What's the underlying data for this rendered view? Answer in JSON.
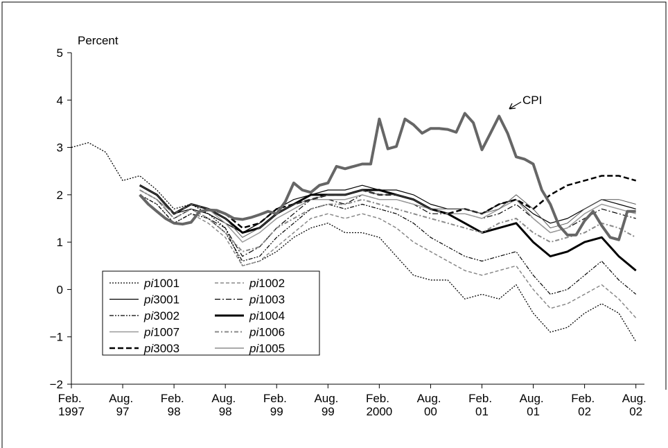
{
  "chart_data": {
    "type": "line",
    "y_label": "Percent",
    "annotation": "CPI",
    "xlim": [
      "1997-02",
      "2002-09"
    ],
    "ylim": [
      -2,
      5
    ],
    "yticks": [
      {
        "value": -2,
        "label": "−2"
      },
      {
        "value": -1,
        "label": "−1"
      },
      0,
      1,
      2,
      3,
      4,
      5
    ],
    "xticks": [
      {
        "value": "1997-02",
        "label": "Feb. 1997"
      },
      {
        "value": "1997-08",
        "label": "Aug. 97"
      },
      {
        "value": "1998-02",
        "label": "Feb. 98"
      },
      {
        "value": "1998-08",
        "label": "Aug. 98"
      },
      {
        "value": "1999-02",
        "label": "Feb. 99"
      },
      {
        "value": "1999-08",
        "label": "Aug. 99"
      },
      {
        "value": "2000-02",
        "label": "Feb. 2000"
      },
      {
        "value": "2000-08",
        "label": "Aug. 00"
      },
      {
        "value": "2001-02",
        "label": "Feb. 01"
      },
      {
        "value": "2001-08",
        "label": "Aug. 01"
      },
      {
        "value": "2002-02",
        "label": "Feb. 02"
      },
      {
        "value": "2002-08",
        "label": "Aug. 02"
      }
    ],
    "x": [
      "1997-02",
      "1997-04",
      "1997-06",
      "1997-08",
      "1997-10",
      "1997-12",
      "1998-02",
      "1998-04",
      "1998-06",
      "1998-08",
      "1998-10",
      "1998-12",
      "1999-02",
      "1999-04",
      "1999-06",
      "1999-08",
      "1999-10",
      "1999-12",
      "2000-02",
      "2000-04",
      "2000-06",
      "2000-08",
      "2000-10",
      "2000-12",
      "2001-02",
      "2001-04",
      "2001-06",
      "2001-08",
      "2001-10",
      "2001-12",
      "2002-02",
      "2002-04",
      "2002-06",
      "2002-08"
    ],
    "series": [
      {
        "name": "pi1001",
        "color": "#000000",
        "width": 1.3,
        "dash": "2,2",
        "values": [
          3.0,
          3.1,
          2.9,
          2.3,
          2.4,
          2.1,
          1.7,
          1.8,
          1.6,
          1.3,
          0.5,
          0.6,
          0.8,
          1.1,
          1.3,
          1.4,
          1.2,
          1.2,
          1.1,
          0.7,
          0.3,
          0.2,
          0.2,
          -0.2,
          -0.1,
          -0.2,
          0.1,
          -0.5,
          -0.9,
          -0.8,
          -0.5,
          -0.3,
          -0.5,
          -1.1
        ]
      },
      {
        "name": "pi1002",
        "color": "#888888",
        "width": 1.5,
        "dash": "5,3",
        "values": [
          null,
          null,
          null,
          null,
          2.0,
          1.8,
          1.4,
          1.6,
          1.4,
          1.1,
          0.5,
          0.6,
          0.9,
          1.2,
          1.5,
          1.6,
          1.5,
          1.6,
          1.5,
          1.3,
          1.0,
          0.8,
          0.6,
          0.4,
          0.3,
          0.4,
          0.5,
          0.0,
          -0.4,
          -0.3,
          -0.1,
          0.1,
          -0.2,
          -0.6
        ]
      },
      {
        "name": "pi3001",
        "color": "#000000",
        "width": 1.2,
        "dash": "none",
        "values": [
          null,
          null,
          null,
          null,
          2.2,
          2.0,
          1.6,
          1.7,
          1.6,
          1.4,
          1.2,
          1.4,
          1.7,
          1.9,
          2.0,
          2.1,
          2.1,
          2.2,
          2.1,
          2.1,
          2.0,
          1.8,
          1.7,
          1.7,
          1.6,
          1.8,
          1.9,
          1.6,
          1.4,
          1.5,
          1.7,
          1.9,
          1.8,
          1.7
        ]
      },
      {
        "name": "pi1003",
        "color": "#000000",
        "width": 1.2,
        "dash": "8,3,2,3",
        "values": [
          null,
          null,
          null,
          null,
          2.1,
          1.9,
          1.5,
          1.7,
          1.5,
          1.3,
          0.7,
          0.9,
          1.3,
          1.6,
          1.9,
          1.9,
          1.8,
          2.0,
          1.9,
          1.9,
          1.8,
          1.6,
          1.6,
          1.6,
          1.5,
          1.6,
          1.8,
          1.5,
          1.2,
          1.3,
          1.5,
          1.7,
          1.6,
          1.5
        ]
      },
      {
        "name": "pi3002",
        "color": "#000000",
        "width": 1.2,
        "dash": "6,2,2,2,2,2",
        "values": [
          null,
          null,
          null,
          null,
          2.0,
          1.8,
          1.4,
          1.6,
          1.5,
          1.2,
          0.6,
          0.7,
          1.1,
          1.4,
          1.7,
          1.8,
          1.7,
          1.8,
          1.7,
          1.6,
          1.4,
          1.1,
          0.9,
          0.7,
          0.6,
          0.7,
          0.8,
          0.3,
          -0.1,
          0.0,
          0.3,
          0.6,
          0.2,
          -0.1
        ]
      },
      {
        "name": "pi1004",
        "color": "#000000",
        "width": 3,
        "dash": "none",
        "values": [
          null,
          null,
          null,
          null,
          2.2,
          2.0,
          1.6,
          1.8,
          1.7,
          1.5,
          1.2,
          1.3,
          1.6,
          1.8,
          2.0,
          2.0,
          2.0,
          2.1,
          2.1,
          2.0,
          1.9,
          1.7,
          1.6,
          1.4,
          1.2,
          1.3,
          1.4,
          1.0,
          0.7,
          0.8,
          1.0,
          1.1,
          0.7,
          0.4
        ]
      },
      {
        "name": "pi1007",
        "color": "#999999",
        "width": 1.5,
        "dash": "none",
        "values": [
          null,
          null,
          null,
          null,
          2.1,
          1.9,
          1.6,
          1.8,
          1.7,
          1.4,
          1.0,
          1.2,
          1.5,
          1.7,
          1.9,
          1.9,
          1.9,
          2.0,
          1.9,
          1.9,
          1.8,
          1.7,
          1.6,
          1.6,
          1.5,
          1.7,
          1.9,
          1.5,
          1.2,
          1.3,
          1.6,
          1.8,
          1.7,
          1.6
        ]
      },
      {
        "name": "pi1006",
        "color": "#888888",
        "width": 2,
        "dash": "6,3,2,3",
        "values": [
          null,
          null,
          null,
          null,
          2.1,
          1.9,
          1.5,
          1.7,
          1.5,
          1.2,
          0.8,
          0.9,
          1.3,
          1.5,
          1.7,
          1.8,
          1.8,
          1.9,
          1.8,
          1.7,
          1.6,
          1.5,
          1.4,
          1.3,
          1.2,
          1.4,
          1.5,
          1.2,
          1.0,
          1.1,
          1.2,
          1.4,
          1.3,
          1.1
        ]
      },
      {
        "name": "pi3003",
        "color": "#000000",
        "width": 2.5,
        "dash": "8,4",
        "values": [
          null,
          null,
          null,
          null,
          2.2,
          2.0,
          1.6,
          1.8,
          1.7,
          1.6,
          1.3,
          1.4,
          1.7,
          1.8,
          1.9,
          2.0,
          2.0,
          2.1,
          2.0,
          2.0,
          1.9,
          1.7,
          1.6,
          1.7,
          1.6,
          1.8,
          1.9,
          1.7,
          2.0,
          2.2,
          2.3,
          2.4,
          2.4,
          2.3
        ]
      },
      {
        "name": "pi1005",
        "color": "#555555",
        "width": 1,
        "dash": "none",
        "values": [
          null,
          null,
          null,
          null,
          2.2,
          2.0,
          1.6,
          1.8,
          1.7,
          1.5,
          1.1,
          1.3,
          1.6,
          1.8,
          1.9,
          2.0,
          2.0,
          2.1,
          2.0,
          2.0,
          1.9,
          1.7,
          1.7,
          1.7,
          1.6,
          1.7,
          2.0,
          1.7,
          1.3,
          1.4,
          1.7,
          1.9,
          1.9,
          1.8
        ]
      },
      {
        "name": "CPI",
        "color": "#666666",
        "width": 4,
        "dash": "none",
        "legend": false,
        "x": [
          "1997-10",
          "1997-11",
          "1997-12",
          "1998-01",
          "1998-02",
          "1998-03",
          "1998-04",
          "1998-05",
          "1998-06",
          "1998-07",
          "1998-08",
          "1998-09",
          "1998-10",
          "1998-11",
          "1998-12",
          "1999-01",
          "1999-02",
          "1999-03",
          "1999-04",
          "1999-05",
          "1999-06",
          "1999-07",
          "1999-08",
          "1999-09",
          "1999-10",
          "1999-11",
          "1999-12",
          "2000-01",
          "2000-02",
          "2000-03",
          "2000-04",
          "2000-05",
          "2000-06",
          "2000-07",
          "2000-08",
          "2000-09",
          "2000-10",
          "2000-11",
          "2000-12",
          "2001-01",
          "2001-02",
          "2001-03",
          "2001-04",
          "2001-05",
          "2001-06",
          "2001-07",
          "2001-08",
          "2001-09",
          "2001-10",
          "2001-11",
          "2001-12",
          "2002-01",
          "2002-02",
          "2002-03",
          "2002-04",
          "2002-05",
          "2002-06",
          "2002-07",
          "2002-08"
        ],
        "values": [
          2.0,
          1.8,
          1.65,
          1.5,
          1.4,
          1.38,
          1.42,
          1.65,
          1.68,
          1.67,
          1.6,
          1.5,
          1.48,
          1.52,
          1.58,
          1.65,
          1.6,
          1.85,
          2.25,
          2.1,
          2.05,
          2.2,
          2.25,
          2.6,
          2.55,
          2.6,
          2.65,
          2.65,
          3.6,
          2.97,
          3.02,
          3.6,
          3.48,
          3.3,
          3.4,
          3.4,
          3.38,
          3.32,
          3.72,
          3.52,
          2.95,
          3.3,
          3.66,
          3.3,
          2.8,
          2.75,
          2.65,
          2.1,
          1.8,
          1.35,
          1.15,
          1.15,
          1.45,
          1.65,
          1.35,
          1.1,
          1.05,
          1.65,
          1.65
        ]
      }
    ]
  }
}
